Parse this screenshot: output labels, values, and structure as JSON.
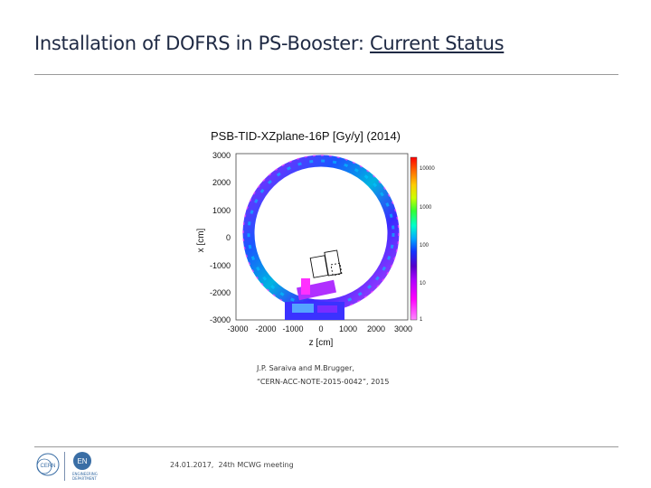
{
  "slide": {
    "title_main": "Installation of DOFRS in PS-Booster: ",
    "title_underlined": "Current Status"
  },
  "figure": {
    "title": "PSB-TID-XZplane-16P [Gy/y] (2014)",
    "x_axis_label": "z [cm]",
    "y_axis_label": "x [cm]",
    "x_ticks": [
      "-3000",
      "-2000",
      "-1000",
      "0",
      "1000",
      "2000",
      "3000"
    ],
    "y_ticks": [
      "3000",
      "2000",
      "1000",
      "0",
      "-1000",
      "-2000",
      "-3000"
    ],
    "colorbar_ticks": [
      "10000",
      "1000",
      "100",
      "10",
      "1"
    ],
    "colors": {
      "colorbar": [
        "#ff0000",
        "#ff6600",
        "#ffcc00",
        "#ccff00",
        "#33ff33",
        "#00ffcc",
        "#00aaff",
        "#1133ff",
        "#5500cc",
        "#aa00ff",
        "#ff00ff",
        "#ff88ff"
      ]
    }
  },
  "caption": {
    "line1": "J.P. Saraiva and M.Brugger,",
    "line2": "“CERN-ACC-NOTE-2015-0042”, 2015"
  },
  "footer": {
    "date": "24.01.2017,",
    "meeting": "24th MCWG meeting"
  },
  "logos": {
    "cern": "CERN",
    "en": "EN",
    "en_text": "ENGINEERING DEPARTMENT"
  }
}
